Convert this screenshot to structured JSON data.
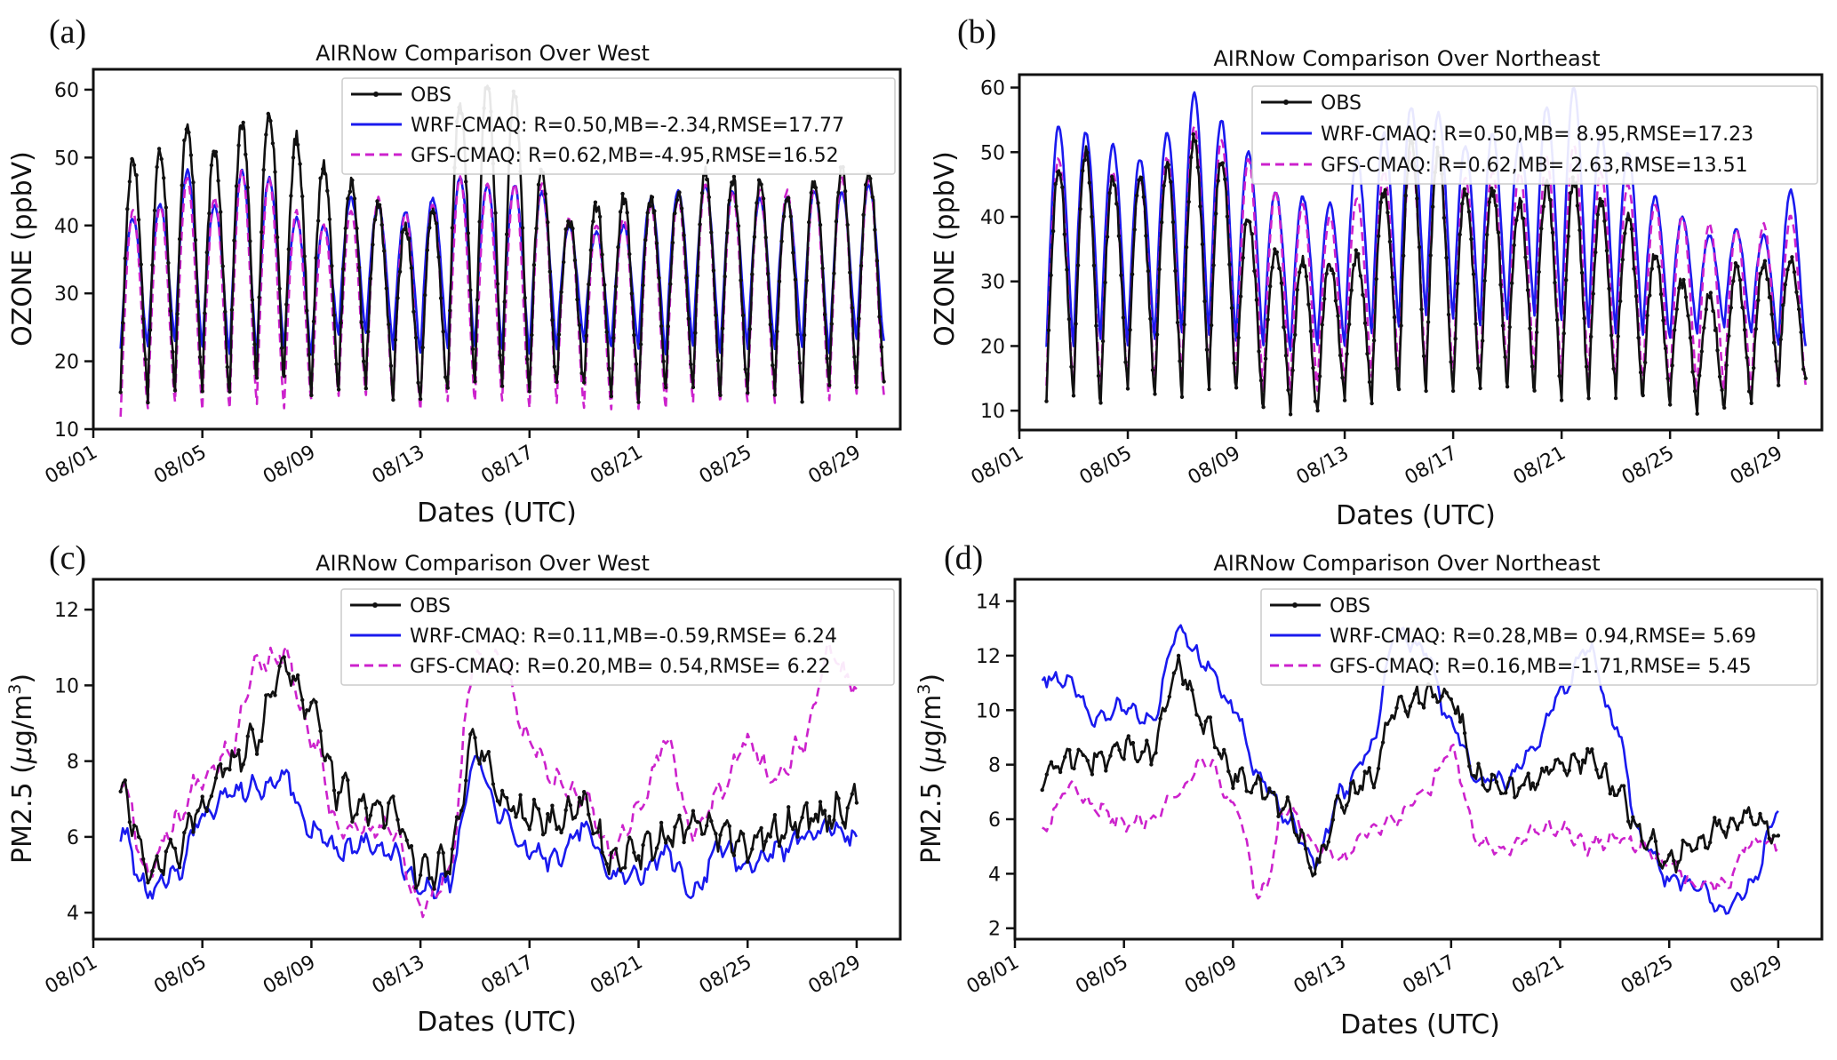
{
  "chart_data": [
    {
      "panel": "(a)",
      "type": "line",
      "title": "AIRNow Comparison Over West",
      "xlabel": "Dates (UTC)",
      "ylabel": "OZONE (ppbV)",
      "ylabel_main": "OZONE (ppbV)",
      "ylim": [
        10,
        63
      ],
      "yticks": [
        10,
        20,
        30,
        40,
        50,
        60
      ],
      "xticks": [
        "08/01",
        "08/05",
        "08/09",
        "08/13",
        "08/17",
        "08/21",
        "08/25",
        "08/29"
      ],
      "x_unit": "day of August",
      "grid": false,
      "legend_position": "top-right",
      "days": 28,
      "series": [
        {
          "name": "OBS",
          "legend": "OBS",
          "color": "#111111",
          "dashed": false,
          "markers": true,
          "peaks": [
            50,
            51,
            55,
            51,
            55,
            57,
            53,
            49,
            46,
            43,
            40,
            42,
            58,
            61,
            59,
            48,
            41,
            43,
            44,
            44,
            45,
            48,
            47,
            46,
            44,
            47,
            48,
            48
          ],
          "troughs": [
            16,
            15,
            16,
            16,
            15,
            17,
            17,
            16,
            16,
            17,
            15,
            14,
            15,
            16,
            16,
            15,
            16,
            16,
            15,
            15,
            16,
            16,
            15,
            15,
            16,
            15,
            16,
            17
          ]
        },
        {
          "name": "WRF-CMAQ",
          "legend": "WRF-CMAQ: R=0.50,MB=-2.34,RMSE=17.77",
          "color": "#1a1aee",
          "dashed": false,
          "markers": false,
          "peaks": [
            41,
            43,
            48,
            43,
            48,
            47,
            41,
            40,
            44,
            43,
            42,
            44,
            47,
            46,
            46,
            45,
            40,
            39,
            40,
            44,
            45,
            46,
            45,
            44,
            44,
            45,
            45,
            46
          ],
          "troughs": [
            22,
            22,
            23,
            22,
            21,
            21,
            22,
            21,
            24,
            24,
            22,
            21,
            22,
            22,
            22,
            21,
            22,
            23,
            22,
            22,
            21,
            22,
            21,
            22,
            22,
            22,
            21,
            23
          ]
        },
        {
          "name": "GFS-CMAQ",
          "legend": "GFS-CMAQ: R=0.62,MB=-4.95,RMSE=16.52",
          "color": "#cc22cc",
          "dashed": true,
          "markers": false,
          "peaks": [
            42,
            43,
            47,
            44,
            48,
            47,
            42,
            40,
            42,
            44,
            42,
            43,
            47,
            46,
            46,
            46,
            41,
            40,
            41,
            43,
            44,
            46,
            45,
            45,
            45,
            46,
            47,
            47
          ],
          "troughs": [
            12,
            13,
            14,
            13,
            13,
            14,
            13,
            14,
            15,
            15,
            14,
            13,
            14,
            14,
            14,
            13,
            14,
            13,
            13,
            13,
            13,
            14,
            14,
            14,
            14,
            14,
            14,
            15
          ]
        }
      ]
    },
    {
      "panel": "(b)",
      "type": "line",
      "title": "AIRNow Comparison Over Northeast",
      "xlabel": "Dates (UTC)",
      "ylabel": "OZONE (ppbV)",
      "ylabel_main": "OZONE (ppbV)",
      "ylim": [
        7,
        62
      ],
      "yticks": [
        10,
        20,
        30,
        40,
        50,
        60
      ],
      "xticks": [
        "08/01",
        "08/05",
        "08/09",
        "08/13",
        "08/17",
        "08/21",
        "08/25",
        "08/29"
      ],
      "x_unit": "day of August",
      "grid": false,
      "legend_position": "top-right",
      "days": 28,
      "series": [
        {
          "name": "OBS",
          "legend": "OBS",
          "color": "#111111",
          "dashed": false,
          "markers": true,
          "peaks": [
            47,
            50,
            46,
            46,
            48,
            52,
            49,
            40,
            35,
            33,
            33,
            34,
            44,
            52,
            50,
            44,
            44,
            42,
            45,
            46,
            42,
            40,
            34,
            30,
            28,
            32,
            33,
            34
          ],
          "troughs": [
            12,
            12,
            11,
            14,
            12,
            13,
            14,
            13,
            10,
            10,
            9,
            12,
            12,
            13,
            13,
            12,
            13,
            14,
            13,
            12,
            12,
            13,
            12,
            11,
            10,
            10,
            11,
            15
          ]
        },
        {
          "name": "WRF-CMAQ",
          "legend": "WRF-CMAQ: R=0.50,MB= 8.95,RMSE=17.23",
          "color": "#1a1aee",
          "dashed": false,
          "markers": false,
          "peaks": [
            54,
            53,
            51,
            49,
            53,
            59,
            55,
            50,
            44,
            43,
            42,
            49,
            53,
            57,
            56,
            51,
            53,
            52,
            57,
            60,
            53,
            50,
            43,
            40,
            37,
            38,
            37,
            44
          ],
          "troughs": [
            20,
            20,
            21,
            20,
            21,
            22,
            22,
            21,
            20,
            19,
            20,
            20,
            22,
            23,
            25,
            24,
            23,
            24,
            25,
            24,
            23,
            22,
            22,
            21,
            22,
            23,
            22,
            20
          ]
        },
        {
          "name": "GFS-CMAQ",
          "legend": "GFS-CMAQ: R=0.62,MB= 2.63,RMSE=13.51",
          "color": "#cc22cc",
          "dashed": true,
          "markers": false,
          "peaks": [
            49,
            50,
            47,
            46,
            49,
            54,
            52,
            49,
            44,
            42,
            40,
            43,
            47,
            50,
            50,
            46,
            47,
            47,
            49,
            51,
            47,
            45,
            42,
            40,
            39,
            38,
            39,
            40
          ],
          "troughs": [
            14,
            13,
            13,
            14,
            14,
            15,
            15,
            15,
            13,
            13,
            13,
            14,
            15,
            16,
            16,
            15,
            15,
            16,
            16,
            15,
            15,
            15,
            14,
            13,
            13,
            13,
            13,
            14
          ]
        }
      ]
    },
    {
      "panel": "(c)",
      "type": "line",
      "title": "AIRNow Comparison Over West",
      "xlabel": "Dates (UTC)",
      "ylabel": "PM2.5 (μg/m3)",
      "ylabel_main": "PM2.5 (",
      "ylabel_mu": "μ",
      "ylabel_unit": "g/m",
      "ylabel_exp": "3",
      "ylabel_end": ")",
      "ylim": [
        3.3,
        12.8
      ],
      "yticks": [
        4,
        6,
        8,
        10,
        12
      ],
      "xticks": [
        "08/01",
        "08/05",
        "08/09",
        "08/13",
        "08/17",
        "08/21",
        "08/25",
        "08/29"
      ],
      "x_unit": "day of August",
      "grid": false,
      "legend_position": "top-right",
      "series": [
        {
          "name": "OBS",
          "legend": "OBS",
          "color": "#111111",
          "dashed": false,
          "markers": true,
          "values": [
            7.2,
            5.2,
            5.6,
            6.8,
            8.0,
            8.7,
            10.6,
            9.5,
            7.2,
            6.7,
            6.7,
            5.0,
            5.3,
            8.5,
            7.0,
            6.5,
            6.4,
            6.8,
            5.4,
            5.6,
            6.0,
            6.4,
            6.0,
            5.8,
            6.1,
            6.4,
            6.6,
            6.9
          ]
        },
        {
          "name": "WRF-CMAQ",
          "legend": "WRF-CMAQ: R=0.11,MB=-0.59,RMSE= 6.24",
          "color": "#1a1aee",
          "dashed": false,
          "markers": false,
          "values": [
            6.1,
            4.6,
            5.0,
            6.5,
            7.2,
            7.3,
            7.6,
            6.2,
            5.6,
            5.8,
            5.6,
            4.6,
            4.8,
            8.0,
            6.5,
            5.6,
            5.4,
            6.3,
            5.0,
            5.0,
            5.6,
            4.5,
            5.8,
            5.2,
            5.6,
            6.0,
            6.3,
            6.0
          ]
        },
        {
          "name": "GFS-CMAQ",
          "legend": "GFS-CMAQ: R=0.20,MB= 0.54,RMSE= 6.22",
          "color": "#cc22cc",
          "dashed": true,
          "markers": false,
          "values": [
            7.6,
            5.1,
            6.4,
            7.6,
            8.3,
            10.6,
            10.8,
            8.6,
            6.2,
            6.2,
            6.2,
            4.1,
            5.0,
            10.6,
            10.6,
            8.5,
            7.5,
            7.0,
            5.6,
            6.7,
            8.5,
            6.1,
            7.2,
            8.5,
            7.5,
            8.5,
            10.8,
            9.9
          ]
        }
      ]
    },
    {
      "panel": "(d)",
      "type": "line",
      "title": "AIRNow Comparison Over Northeast",
      "xlabel": "Dates (UTC)",
      "ylabel": "PM2.5 (μg/m3)",
      "ylabel_main": "PM2.5 (",
      "ylabel_mu": "μ",
      "ylabel_unit": "g/m",
      "ylabel_exp": "3",
      "ylabel_end": ")",
      "ylim": [
        1.6,
        14.8
      ],
      "yticks": [
        2,
        4,
        6,
        8,
        10,
        12,
        14
      ],
      "xticks": [
        "08/01",
        "08/05",
        "08/09",
        "08/13",
        "08/17",
        "08/21",
        "08/25",
        "08/29"
      ],
      "x_unit": "day of August",
      "grid": false,
      "legend_position": "top-right",
      "series": [
        {
          "name": "OBS",
          "legend": "OBS",
          "color": "#111111",
          "dashed": false,
          "markers": true,
          "values": [
            7.5,
            8.3,
            8.1,
            8.6,
            8.4,
            11.5,
            9.5,
            7.6,
            7.2,
            6.3,
            4.2,
            6.6,
            7.5,
            10.0,
            10.6,
            10.4,
            7.5,
            7.0,
            7.4,
            8.0,
            8.2,
            7.2,
            5.5,
            4.5,
            5.0,
            5.8,
            6.2,
            5.4
          ]
        },
        {
          "name": "WRF-CMAQ",
          "legend": "WRF-CMAQ: R=0.28,MB= 0.94,RMSE= 5.69",
          "color": "#1a1aee",
          "dashed": false,
          "markers": false,
          "values": [
            11.2,
            11.0,
            9.6,
            10.2,
            9.6,
            13.0,
            11.7,
            10.1,
            7.5,
            6.0,
            4.5,
            7.0,
            8.5,
            12.8,
            12.2,
            9.5,
            7.5,
            7.4,
            8.5,
            10.6,
            12.3,
            9.5,
            5.2,
            3.8,
            3.6,
            2.6,
            3.6,
            6.3
          ]
        },
        {
          "name": "GFS-CMAQ",
          "legend": "GFS-CMAQ: R=0.16,MB=-1.71,RMSE= 5.45",
          "color": "#cc22cc",
          "dashed": true,
          "markers": false,
          "values": [
            5.6,
            7.2,
            6.4,
            5.8,
            6.0,
            7.0,
            8.2,
            6.6,
            3.2,
            6.5,
            5.0,
            4.6,
            5.6,
            6.0,
            7.0,
            8.5,
            5.2,
            4.9,
            5.5,
            5.7,
            5.0,
            5.3,
            5.0,
            4.3,
            3.6,
            3.6,
            5.2,
            5.0
          ]
        }
      ]
    }
  ]
}
